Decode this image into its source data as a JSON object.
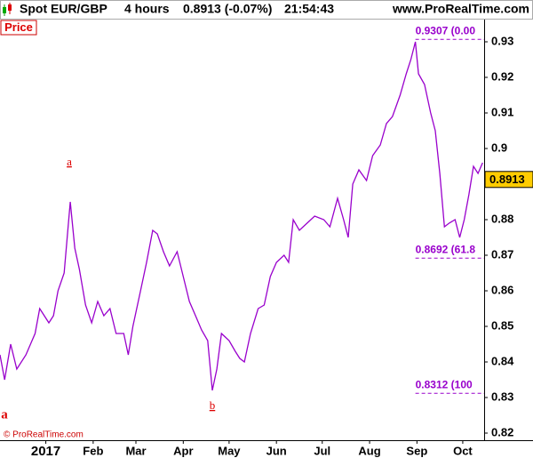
{
  "header": {
    "instrument": "Spot EUR/GBP",
    "timeframe": "4 hours",
    "quote": "0.8913 (-0.07%)",
    "time": "21:54:43",
    "site": "www.ProRealTime.com"
  },
  "chart_data": {
    "type": "line",
    "panel_label": "Price",
    "copyright": "© ProRealTime.com",
    "color": "#9900cc",
    "x": [
      -30,
      -27,
      -23,
      -19,
      -13,
      -7,
      -4,
      2,
      5,
      8,
      12,
      16,
      19,
      22,
      26,
      30,
      34,
      38,
      42,
      46,
      51,
      54,
      57,
      62,
      66,
      70,
      73,
      77,
      81,
      86,
      90,
      94,
      98,
      102,
      106,
      109,
      112,
      115,
      120,
      124,
      127,
      130,
      134,
      139,
      143,
      147,
      151,
      156,
      159,
      162,
      166,
      171,
      176,
      182,
      186,
      191,
      195,
      198,
      201,
      205,
      210,
      214,
      219,
      223,
      227,
      232,
      236,
      239,
      242,
      244,
      248,
      252,
      255,
      258,
      261,
      264,
      268,
      271,
      274,
      277,
      280,
      283,
      286
    ],
    "values": [
      0.842,
      0.835,
      0.845,
      0.838,
      0.842,
      0.848,
      0.855,
      0.851,
      0.853,
      0.86,
      0.865,
      0.885,
      0.872,
      0.866,
      0.856,
      0.851,
      0.857,
      0.853,
      0.855,
      0.848,
      0.848,
      0.842,
      0.85,
      0.86,
      0.868,
      0.877,
      0.876,
      0.871,
      0.867,
      0.871,
      0.864,
      0.857,
      0.853,
      0.849,
      0.846,
      0.832,
      0.838,
      0.848,
      0.846,
      0.843,
      0.841,
      0.84,
      0.848,
      0.855,
      0.856,
      0.864,
      0.868,
      0.87,
      0.868,
      0.88,
      0.877,
      0.879,
      0.881,
      0.88,
      0.878,
      0.886,
      0.88,
      0.875,
      0.89,
      0.894,
      0.891,
      0.898,
      0.901,
      0.907,
      0.909,
      0.915,
      0.921,
      0.925,
      0.93,
      0.921,
      0.918,
      0.91,
      0.905,
      0.893,
      0.878,
      0.879,
      0.88,
      0.875,
      0.88,
      0.887,
      0.895,
      0.893,
      0.896
    ],
    "xlim": [
      -30,
      287
    ],
    "xticks": [
      {
        "value": 0,
        "label": "2017"
      },
      {
        "value": 31,
        "label": "Feb"
      },
      {
        "value": 59,
        "label": "Mar"
      },
      {
        "value": 90,
        "label": "Apr"
      },
      {
        "value": 120,
        "label": "May"
      },
      {
        "value": 151,
        "label": "Jun"
      },
      {
        "value": 181,
        "label": "Jul"
      },
      {
        "value": 212,
        "label": "Aug"
      },
      {
        "value": 243,
        "label": "Sep"
      },
      {
        "value": 273,
        "label": "Oct"
      }
    ],
    "ylim": [
      0.818,
      0.93625
    ],
    "yticks": [
      0.82,
      0.83,
      0.84,
      0.85,
      0.86,
      0.87,
      0.88,
      0.89,
      0.9,
      0.91,
      0.92,
      0.93
    ],
    "last_price": 0.8913,
    "fib_levels": [
      {
        "value": 0.9307,
        "label": "0.9307 (0.00"
      },
      {
        "value": 0.8692,
        "label": "0.8692 (61.8"
      },
      {
        "value": 0.8312,
        "label": "0.8312 (100"
      }
    ],
    "fib_start": 242,
    "annotations": [
      "a",
      "a",
      "b"
    ]
  }
}
